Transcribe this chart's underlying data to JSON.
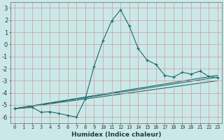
{
  "xlabel": "Humidex (Indice chaleur)",
  "background_color": "#cbe8e8",
  "grid_color": "#aacccc",
  "line_color": "#1a6b6b",
  "xlim": [
    -0.5,
    23.5
  ],
  "ylim": [
    -6.5,
    3.5
  ],
  "xticks": [
    0,
    1,
    2,
    3,
    4,
    5,
    6,
    7,
    8,
    9,
    10,
    11,
    12,
    13,
    14,
    15,
    16,
    17,
    18,
    19,
    20,
    21,
    22,
    23
  ],
  "yticks": [
    -6,
    -5,
    -4,
    -3,
    -2,
    -1,
    0,
    1,
    2,
    3
  ],
  "main_series": {
    "x": [
      0,
      2,
      3,
      4,
      5,
      6,
      7,
      8,
      9,
      10,
      11,
      12,
      13,
      14,
      15,
      16,
      17,
      18,
      19,
      20,
      21,
      22,
      23
    ],
    "y": [
      -5.3,
      -5.2,
      -5.6,
      -5.55,
      -5.7,
      -5.85,
      -6.0,
      -4.5,
      -1.8,
      0.3,
      1.95,
      2.85,
      1.5,
      -0.35,
      -1.3,
      -1.65,
      -2.55,
      -2.7,
      -2.3,
      -2.45,
      -2.2,
      -2.65,
      -2.75
    ]
  },
  "trend_lines": [
    {
      "x": [
        0,
        23
      ],
      "y": [
        -5.3,
        -2.55
      ]
    },
    {
      "x": [
        0,
        23
      ],
      "y": [
        -5.3,
        -2.7
      ]
    },
    {
      "x": [
        0,
        23
      ],
      "y": [
        -5.3,
        -3.0
      ]
    }
  ]
}
